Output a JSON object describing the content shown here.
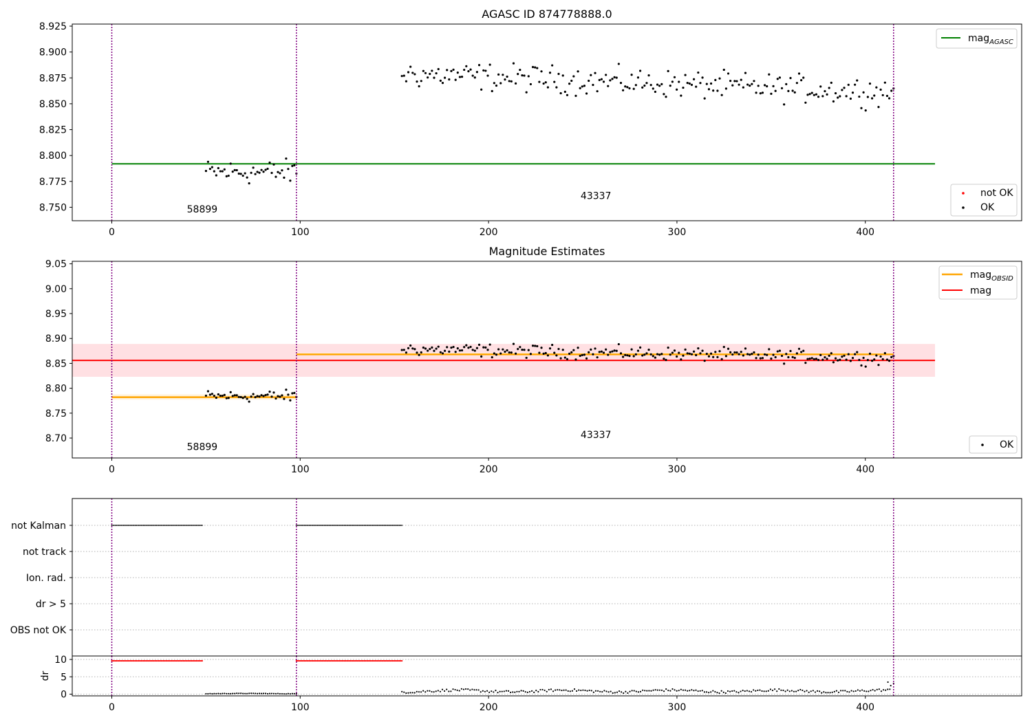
{
  "chart_data": [
    {
      "panel": "top",
      "type": "scatter",
      "title": "AGASC ID 874778888.0",
      "xlim": [
        -21,
        483
      ],
      "ylim": [
        8.737,
        8.927
      ],
      "xticks": [
        0,
        100,
        200,
        300,
        400
      ],
      "yticks": [
        8.75,
        8.775,
        8.8,
        8.825,
        8.85,
        8.875,
        8.9,
        8.925
      ],
      "ytick_labels": [
        "8.750",
        "8.775",
        "8.800",
        "8.825",
        "8.850",
        "8.875",
        "8.900",
        "8.925"
      ],
      "obs_boundaries": [
        0,
        98,
        415
      ],
      "obs_labels": [
        {
          "text": "58899",
          "x": 48,
          "y": 8.745
        },
        {
          "text": "43337",
          "x": 257,
          "y": 8.758
        }
      ],
      "mag_agasc": {
        "value": 8.792,
        "x_range": [
          0,
          437
        ],
        "color": "#008000"
      },
      "series": [
        {
          "name": "OK",
          "color": "#000000",
          "segments": [
            {
              "x_start": 50,
              "x_end": 98,
              "count": 45,
              "mean": 8.784,
              "spread": 0.009
            },
            {
              "x_start": 154,
              "x_end": 415,
              "count": 230,
              "trend_start": 8.879,
              "trend_end": 8.861,
              "spread": 0.01
            }
          ]
        },
        {
          "name": "not OK",
          "color": "#ff0000",
          "segments": []
        }
      ],
      "legend": {
        "top_right": [
          "mag_AGASC"
        ],
        "bottom_right": [
          "not OK",
          "OK"
        ]
      }
    },
    {
      "panel": "middle",
      "type": "scatter",
      "title": "Magnitude Estimates",
      "xlim": [
        -21,
        483
      ],
      "ylim": [
        8.66,
        9.055
      ],
      "xticks": [
        0,
        100,
        200,
        300,
        400
      ],
      "yticks": [
        8.7,
        8.75,
        8.8,
        8.85,
        8.9,
        8.95,
        9.0,
        9.05
      ],
      "ytick_labels": [
        "8.70",
        "8.75",
        "8.80",
        "8.85",
        "8.90",
        "8.95",
        "9.00",
        "9.05"
      ],
      "obs_boundaries": [
        0,
        98,
        415
      ],
      "obs_labels": [
        {
          "text": "58899",
          "x": 48,
          "y": 8.676
        },
        {
          "text": "43337",
          "x": 257,
          "y": 8.7
        }
      ],
      "mag": {
        "value": 8.856,
        "band": [
          8.823,
          8.889
        ],
        "x_range": [
          -21,
          437
        ],
        "color": "#ff0000"
      },
      "mag_obsid": [
        {
          "x_start": 0,
          "x_end": 98,
          "value": 8.782,
          "band": [
            8.777,
            8.788
          ]
        },
        {
          "x_start": 98,
          "x_end": 415,
          "value": 8.868,
          "band": [
            8.866,
            8.871
          ]
        }
      ],
      "series": [
        {
          "name": "OK",
          "color": "#000000"
        }
      ],
      "legend": {
        "top_right": [
          "mag_OBSID",
          "mag"
        ],
        "bottom_right": [
          "OK"
        ]
      }
    },
    {
      "panel": "flags",
      "type": "scatter",
      "xlim": [
        -21,
        483
      ],
      "categories": [
        "not Kalman",
        "not track",
        "Ion. rad.",
        "dr > 5",
        "OBS not OK"
      ],
      "flag_segments": [
        {
          "category": "not Kalman",
          "x_start": 0,
          "x_end": 48
        },
        {
          "category": "not Kalman",
          "x_start": 98,
          "x_end": 154
        }
      ],
      "obs_boundaries": [
        0,
        98,
        415
      ]
    },
    {
      "panel": "dr",
      "type": "scatter",
      "ylabel": "dr",
      "xlim": [
        -21,
        483
      ],
      "ylim": [
        -0.5,
        11
      ],
      "yticks": [
        0,
        5,
        10
      ],
      "xticks": [
        0,
        100,
        200,
        300,
        400
      ],
      "clipped_segments": [
        {
          "x_start": 0,
          "x_end": 48,
          "value": 9.6,
          "color": "#ff0000"
        },
        {
          "x_start": 98,
          "x_end": 154,
          "value": 9.6,
          "color": "#ff0000"
        }
      ],
      "series": [
        {
          "x_start": 50,
          "x_end": 98,
          "count": 45,
          "level": 0.15
        },
        {
          "x_start": 154,
          "x_end": 413,
          "count": 230,
          "level": 0.9
        },
        {
          "x_start": 412,
          "x_end": 415,
          "count": 3,
          "level": 2.6
        }
      ],
      "obs_boundaries": [
        0,
        98,
        415
      ]
    }
  ],
  "legend_labels": {
    "mag_agasc_main": "mag",
    "mag_agasc_sub": "AGASC",
    "mag_obsid_main": "mag",
    "mag_obsid_sub": "OBSID",
    "mag": "mag",
    "not_ok": "not OK",
    "ok": "OK"
  },
  "colors": {
    "obs_line": "#800080",
    "mag_agasc": "#008000",
    "mag": "#ff0000",
    "mag_band": "#ffe0e3",
    "mag_obsid": "#ffa500",
    "mag_obsid_band": "#fff3df",
    "grid": "#b0b0b0"
  }
}
